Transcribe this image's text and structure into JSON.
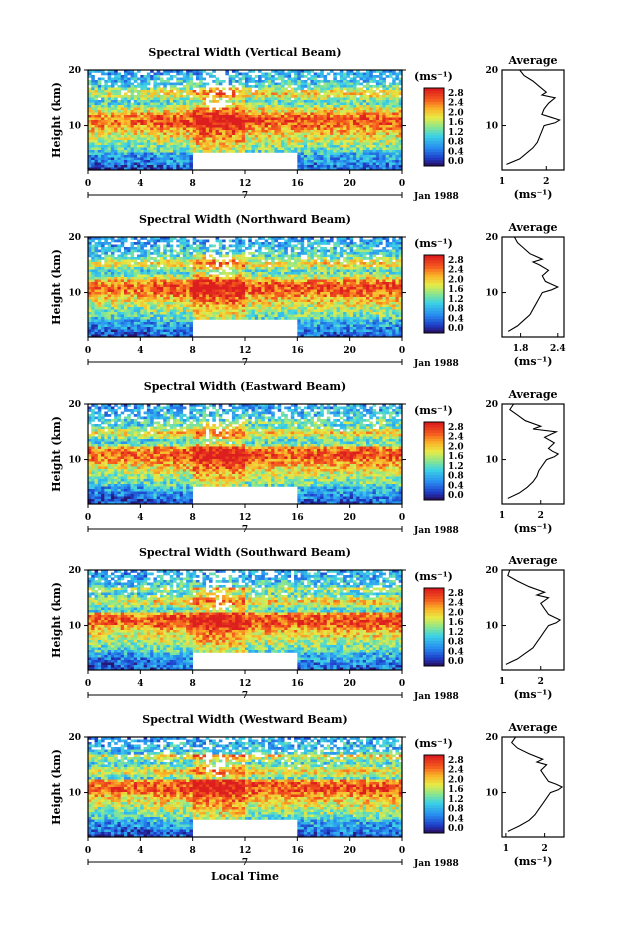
{
  "chart_data": [
    {
      "type": "heatmap",
      "title": "Spectral Width (Vertical Beam)",
      "ylabel": "Height (km)",
      "yticks": [
        "20",
        "10"
      ],
      "xticks": [
        "0",
        "4",
        "8",
        "12",
        "16",
        "20",
        "0"
      ],
      "xlim": [
        0,
        24
      ],
      "ylim": [
        2,
        20
      ],
      "colorbar": {
        "unit": "(ms⁻¹)",
        "ticks": [
          "2.8",
          "2.4",
          "2.0",
          "1.6",
          "1.2",
          "0.8",
          "0.4",
          "0.0"
        ]
      },
      "date_marker": "7",
      "date_label": "Jan 1988",
      "gap": [
        8,
        16
      ],
      "profile": {
        "title": "Average",
        "xlabel": "(ms⁻¹)",
        "xticks": [
          "1",
          "2"
        ],
        "xlim": [
          1.0,
          2.4
        ],
        "yticks": [
          "20",
          "10"
        ],
        "heights": [
          3,
          4,
          5,
          6,
          7,
          8,
          9,
          10,
          10.5,
          11,
          11.5,
          12,
          13,
          14,
          15,
          15.5,
          16,
          17,
          18,
          19,
          20
        ],
        "values": [
          1.1,
          1.4,
          1.55,
          1.7,
          1.8,
          1.85,
          1.9,
          1.95,
          2.2,
          2.3,
          2.1,
          1.9,
          1.95,
          2.05,
          2.2,
          1.9,
          2.0,
          1.85,
          1.7,
          1.5,
          1.4
        ]
      }
    },
    {
      "type": "heatmap",
      "title": "Spectral Width (Northward Beam)",
      "ylabel": "Height (km)",
      "yticks": [
        "20",
        "10"
      ],
      "xticks": [
        "0",
        "4",
        "8",
        "12",
        "16",
        "20",
        "0"
      ],
      "xlim": [
        0,
        24
      ],
      "ylim": [
        2,
        20
      ],
      "colorbar": {
        "unit": "(ms⁻¹)",
        "ticks": [
          "2.8",
          "2.4",
          "2.0",
          "1.6",
          "1.2",
          "0.8",
          "0.4",
          "0.0"
        ]
      },
      "date_marker": "7",
      "date_label": "Jan 1988",
      "gap": [
        8,
        16
      ],
      "profile": {
        "title": "Average",
        "xlabel": "(ms⁻¹)",
        "xticks": [
          "1.8",
          "2.4"
        ],
        "xlim": [
          1.5,
          2.5
        ],
        "yticks": [
          "20",
          "10"
        ],
        "heights": [
          3,
          4,
          5,
          6,
          7,
          8,
          9,
          10,
          10.5,
          11,
          11.5,
          12,
          13,
          14,
          15,
          15.5,
          16,
          17,
          18,
          19,
          20
        ],
        "values": [
          1.6,
          1.75,
          1.85,
          1.95,
          2.0,
          2.05,
          2.1,
          2.15,
          2.3,
          2.4,
          2.3,
          2.2,
          2.15,
          2.25,
          2.1,
          2.0,
          2.15,
          1.95,
          1.85,
          1.75,
          1.7
        ]
      }
    },
    {
      "type": "heatmap",
      "title": "Spectral Width (Eastward Beam)",
      "ylabel": "Height (km)",
      "yticks": [
        "20",
        "10"
      ],
      "xticks": [
        "0",
        "4",
        "8",
        "12",
        "16",
        "20",
        "0"
      ],
      "xlim": [
        0,
        24
      ],
      "ylim": [
        2,
        20
      ],
      "colorbar": {
        "unit": "(ms⁻¹)",
        "ticks": [
          "2.8",
          "2.4",
          "2.0",
          "1.6",
          "1.2",
          "0.8",
          "0.4",
          "0.0"
        ]
      },
      "date_marker": "7",
      "date_label": "Jan 1988",
      "gap": [
        8,
        16
      ],
      "profile": {
        "title": "Average",
        "xlabel": "(ms⁻¹)",
        "xticks": [
          "1",
          "2"
        ],
        "xlim": [
          1.0,
          2.6
        ],
        "yticks": [
          "20",
          "10"
        ],
        "heights": [
          3,
          4,
          5,
          6,
          7,
          8,
          9,
          10,
          10.5,
          11,
          11.5,
          12,
          13,
          14,
          15,
          15.5,
          16,
          17,
          18,
          19,
          20
        ],
        "values": [
          1.15,
          1.45,
          1.65,
          1.8,
          1.9,
          1.95,
          2.05,
          2.15,
          2.35,
          2.45,
          2.3,
          2.2,
          2.35,
          2.1,
          2.4,
          1.8,
          2.0,
          1.6,
          1.4,
          1.2,
          1.3
        ]
      }
    },
    {
      "type": "heatmap",
      "title": "Spectral Width (Southward Beam)",
      "ylabel": "Height (km)",
      "yticks": [
        "20",
        "10"
      ],
      "xticks": [
        "0",
        "4",
        "8",
        "12",
        "16",
        "20",
        "0"
      ],
      "xlim": [
        0,
        24
      ],
      "ylim": [
        2,
        20
      ],
      "colorbar": {
        "unit": "(ms⁻¹)",
        "ticks": [
          "2.8",
          "2.4",
          "2.0",
          "1.6",
          "1.2",
          "0.8",
          "0.4",
          "0.0"
        ]
      },
      "date_marker": "7",
      "date_label": "Jan 1988",
      "gap": [
        8,
        16
      ],
      "profile": {
        "title": "Average",
        "xlabel": "(ms⁻¹)",
        "xticks": [
          "1",
          "2"
        ],
        "xlim": [
          1.0,
          2.6
        ],
        "yticks": [
          "20",
          "10"
        ],
        "heights": [
          3,
          4,
          5,
          6,
          7,
          8,
          9,
          10,
          10.5,
          11,
          11.5,
          12,
          13,
          14,
          15,
          15.5,
          16,
          17,
          18,
          19,
          20
        ],
        "values": [
          1.1,
          1.4,
          1.6,
          1.8,
          1.9,
          2.0,
          2.1,
          2.2,
          2.4,
          2.5,
          2.35,
          2.2,
          2.1,
          2.0,
          2.2,
          1.9,
          2.1,
          1.7,
          1.4,
          1.15,
          1.2
        ]
      }
    },
    {
      "type": "heatmap",
      "title": "Spectral Width (Westward Beam)",
      "ylabel": "Height (km)",
      "yticks": [
        "20",
        "10"
      ],
      "xticks": [
        "0",
        "4",
        "8",
        "12",
        "16",
        "20",
        "0"
      ],
      "xlim": [
        0,
        24
      ],
      "ylim": [
        2,
        20
      ],
      "colorbar": {
        "unit": "(ms⁻¹)",
        "ticks": [
          "2.8",
          "2.4",
          "2.0",
          "1.6",
          "1.2",
          "0.8",
          "0.4",
          "0.0"
        ]
      },
      "date_marker": "7",
      "date_label": "Jan 1988",
      "gap": [
        8,
        16
      ],
      "xlabel": "Local Time",
      "profile": {
        "title": "Average",
        "xlabel": "(ms⁻¹)",
        "xticks": [
          "1",
          "2"
        ],
        "xlim": [
          0.9,
          2.5
        ],
        "yticks": [
          "20",
          "10"
        ],
        "heights": [
          3,
          4,
          5,
          6,
          7,
          8,
          9,
          10,
          10.5,
          11,
          11.5,
          12,
          13,
          14,
          15,
          15.5,
          16,
          17,
          18,
          19,
          20
        ],
        "values": [
          1.05,
          1.35,
          1.6,
          1.75,
          1.85,
          1.95,
          2.05,
          2.15,
          2.35,
          2.45,
          2.3,
          2.1,
          2.0,
          1.9,
          2.05,
          1.8,
          1.95,
          1.6,
          1.3,
          1.15,
          1.25
        ]
      }
    }
  ]
}
